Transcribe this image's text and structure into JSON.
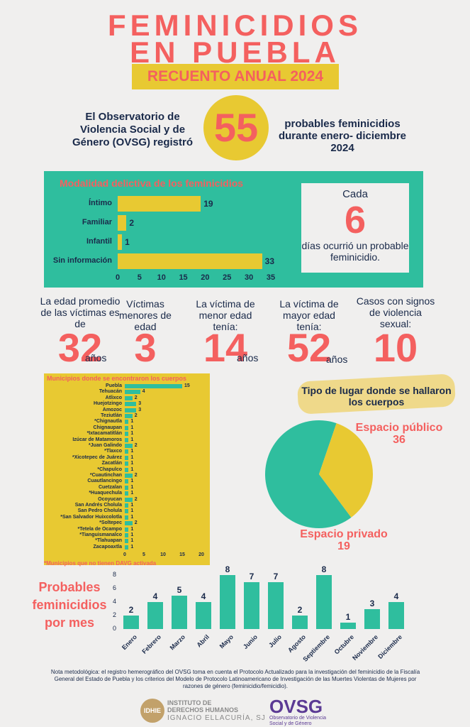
{
  "header": {
    "title_line1": "FEMINICIDIOS",
    "title_line2": "EN PUEBLA",
    "subtitle": "RECUENTO ANUAL 2024"
  },
  "intro": {
    "left": "El Observatorio de Violencia Social y de Género (OVSG) registró",
    "number": "55",
    "right": "probables feminicidios durante enero- diciembre 2024"
  },
  "modalidad": {
    "title": "Modalidad delictiva de los feminicidios",
    "axis_ticks": [
      "0",
      "5",
      "10",
      "15",
      "20",
      "25",
      "30",
      "35"
    ]
  },
  "cada": {
    "line1": "Cada",
    "number": "6",
    "line2": "días ocurrió un probable feminicidio."
  },
  "stats": [
    {
      "text": "La edad promedio de las víctimas es de",
      "value": "32",
      "unit": "años"
    },
    {
      "text": "Víctimas menores de edad",
      "value": "3",
      "unit": ""
    },
    {
      "text": "La víctima de menor edad tenía:",
      "value": "14",
      "unit": "años"
    },
    {
      "text": "La víctima de mayor edad tenía:",
      "value": "52",
      "unit": "años"
    },
    {
      "text": "Casos con signos de violencia sexual:",
      "value": "10",
      "unit": ""
    }
  ],
  "municipios": {
    "title": "Municipios donde se encontraron los cuerpos",
    "note": "*Municipios que no tienen DAVG activada",
    "axis_ticks": [
      "0",
      "5",
      "10",
      "15",
      "20"
    ]
  },
  "lugar": {
    "title": "Tipo de lugar donde se hallaron los cuerpos",
    "publico_label": "Espacio público",
    "publico_value": "36",
    "privado_label": "Espacio privado",
    "privado_value": "19"
  },
  "por_mes": {
    "title": "Probables feminicidios por mes",
    "axis_ticks": [
      "0",
      "2",
      "4",
      "6",
      "8"
    ]
  },
  "footer": {
    "note": "Nota metodológica: el registro hemerográfico del OVSG toma en cuenta el Protocolo Actualizado para la investigación del feminicidio de la Fiscalía General del Estado de Puebla y los criterios del Modelo de Protocolo Latinoamericano de Investigación de las Muertes Violentas de Mujeres por razones de género (feminicidio/femicidio).",
    "idhie_logo": "IDHIE",
    "idhie_line1": "INSTITUTO DE",
    "idhie_line2": "DERECHOS HUMANOS",
    "idhie_line3": "IGNACIO ELLACURÍA, SJ",
    "ovsg_logo": "OVSG",
    "ovsg_line1": "Observatorio de Violencia",
    "ovsg_line2": "Social y de Género"
  },
  "colors": {
    "coral": "#f4605f",
    "yellow": "#e8c932",
    "teal": "#2fbe9e",
    "navy": "#1a2a4a"
  },
  "chart_data": [
    {
      "type": "bar",
      "title": "Modalidad delictiva de los feminicidios",
      "orientation": "horizontal",
      "categories": [
        "Íntimo",
        "Familiar",
        "Infantil",
        "Sin información"
      ],
      "values": [
        19,
        2,
        1,
        33
      ],
      "xlim": [
        0,
        35
      ]
    },
    {
      "type": "bar",
      "title": "Municipios donde se encontraron los cuerpos",
      "orientation": "horizontal",
      "categories": [
        "Puebla",
        "Tehuacán",
        "Atlixco",
        "Huejotzingo",
        "Amozoc",
        "Teziutlán",
        "*Chignautla",
        "Chignaupan",
        "*Ixtacamatitlán",
        "Izúcar de Matamoros",
        "*Juan Galindo",
        "*Tlaxco",
        "*Xicotepec de Juárez",
        "Zacatlán",
        "*Chapulco",
        "*Cuautinchan",
        "Cuautlancingo",
        "Cuetzalan",
        "*Huaquechula",
        "Ocoyucan",
        "San Andrés Cholula",
        "San Pedro Cholula",
        "*San Salvador Huixcolotla",
        "*Soltepec",
        "*Tetela de Ocampo",
        "*Tianguismanalco",
        "*Tlahuapan",
        "Zacapoaxtla"
      ],
      "values": [
        15,
        4,
        2,
        3,
        3,
        2,
        1,
        1,
        1,
        1,
        2,
        1,
        1,
        1,
        1,
        2,
        1,
        1,
        1,
        2,
        1,
        1,
        1,
        2,
        1,
        1,
        1,
        1
      ],
      "xlim": [
        0,
        20
      ]
    },
    {
      "type": "pie",
      "title": "Tipo de lugar donde se hallaron los cuerpos",
      "categories": [
        "Espacio público",
        "Espacio privado"
      ],
      "values": [
        36,
        19
      ]
    },
    {
      "type": "bar",
      "title": "Probables feminicidios por mes",
      "categories": [
        "Enero",
        "Febrero",
        "Marzo",
        "Abril",
        "Mayo",
        "Junio",
        "Julio",
        "Agosto",
        "Septiembre",
        "Octubre",
        "Noviembre",
        "Diciembre"
      ],
      "values": [
        2,
        4,
        5,
        4,
        8,
        7,
        7,
        2,
        8,
        1,
        3,
        4
      ],
      "ylim": [
        0,
        8
      ]
    }
  ]
}
